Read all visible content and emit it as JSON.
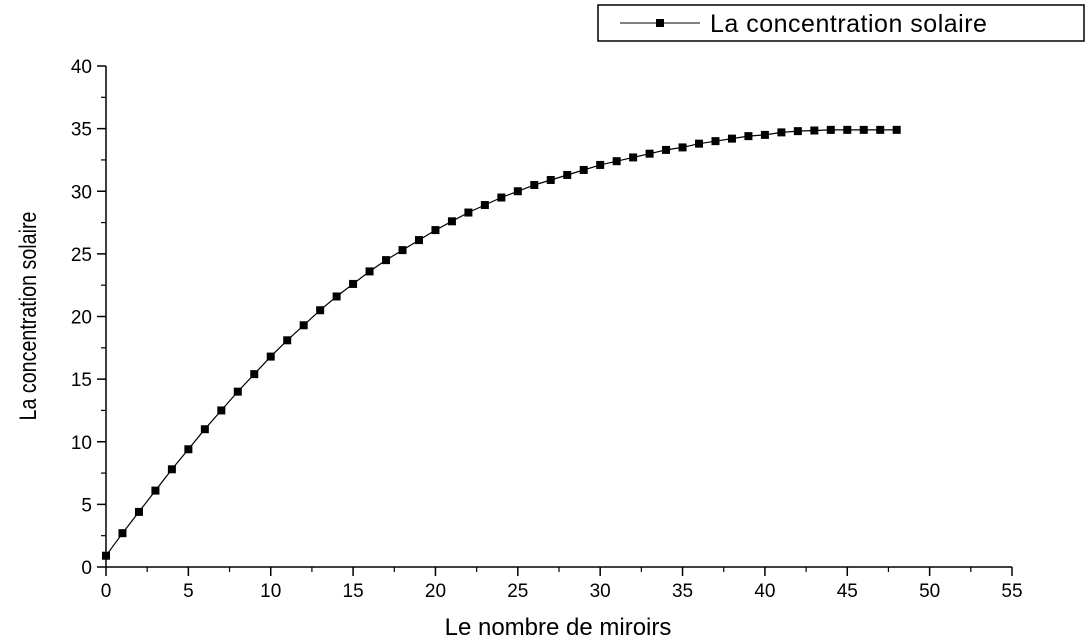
{
  "chart_data": {
    "type": "line",
    "xlabel": "Le nombre de miroirs",
    "ylabel": "La concentration solaire",
    "xlim": [
      0,
      55
    ],
    "ylim": [
      0,
      40
    ],
    "x_ticks": [
      "0",
      "5",
      "10",
      "15",
      "20",
      "25",
      "30",
      "35",
      "40",
      "45",
      "50",
      "55"
    ],
    "y_ticks": [
      "0",
      "5",
      "10",
      "15",
      "20",
      "25",
      "30",
      "35",
      "40"
    ],
    "grid": false,
    "legend": "top-right",
    "series": [
      {
        "name": "La concentration solaire",
        "color": "#000000",
        "marker": "square",
        "x": [
          0,
          1,
          2,
          3,
          4,
          5,
          6,
          7,
          8,
          9,
          10,
          11,
          12,
          13,
          14,
          15,
          16,
          17,
          18,
          19,
          20,
          21,
          22,
          23,
          24,
          25,
          26,
          27,
          28,
          29,
          30,
          31,
          32,
          33,
          34,
          35,
          36,
          37,
          38,
          39,
          40,
          41,
          42,
          43,
          44,
          45,
          46,
          47,
          48
        ],
        "y": [
          0.9,
          2.7,
          4.4,
          6.1,
          7.8,
          9.4,
          11.0,
          12.5,
          14.0,
          15.4,
          16.8,
          18.1,
          19.3,
          20.5,
          21.6,
          22.6,
          23.6,
          24.5,
          25.3,
          26.1,
          26.9,
          27.6,
          28.3,
          28.9,
          29.5,
          30.0,
          30.5,
          30.9,
          31.3,
          31.7,
          32.1,
          32.4,
          32.7,
          33.0,
          33.3,
          33.5,
          33.8,
          34.0,
          34.2,
          34.4,
          34.5,
          34.7,
          34.8,
          34.85,
          34.9,
          34.9,
          34.9,
          34.9,
          34.9
        ]
      }
    ]
  }
}
